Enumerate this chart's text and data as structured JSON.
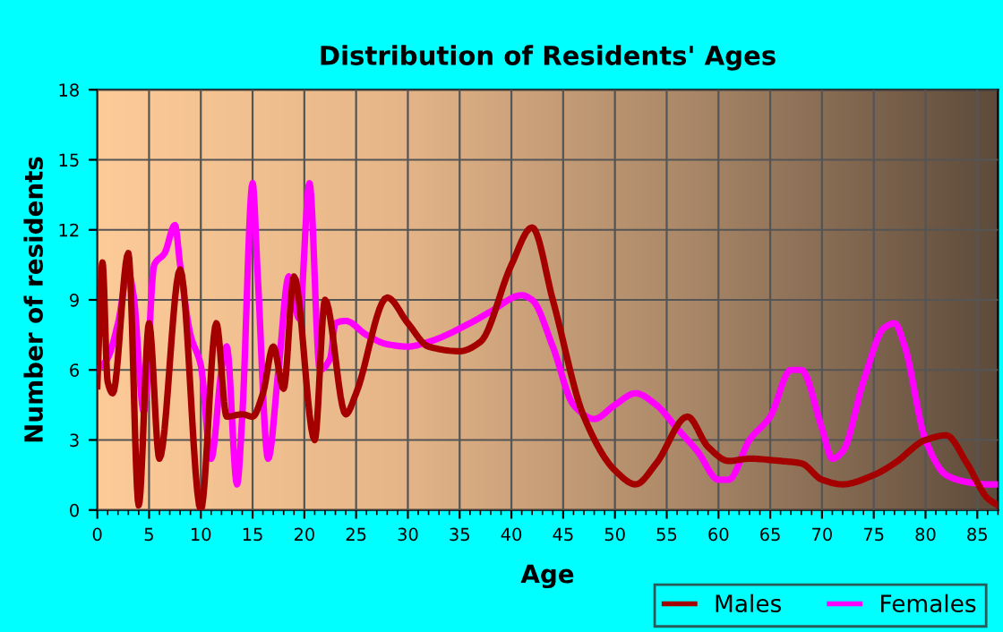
{
  "chart_data": {
    "type": "line",
    "title": "Distribution of Residents' Ages",
    "xlabel": "Age",
    "ylabel": "Number of residents",
    "xlim": [
      0,
      87
    ],
    "xticks": [
      0,
      5,
      10,
      15,
      20,
      25,
      30,
      35,
      40,
      45,
      50,
      55,
      60,
      65,
      70,
      75,
      80,
      85
    ],
    "ylim": [
      0,
      18
    ],
    "yticks": [
      0,
      3,
      6,
      9,
      12,
      15,
      18
    ],
    "grid": true,
    "legend": "bottom right",
    "marker": "none",
    "line_style": "solid",
    "series": [
      {
        "name": "Males",
        "color": "#a50000",
        "x": [
          0,
          0.5,
          1,
          1.5,
          3,
          4,
          5,
          6,
          8,
          10,
          11.5,
          12.5,
          14,
          15,
          16,
          17,
          18,
          19,
          21,
          22,
          24,
          25,
          28,
          30,
          32,
          35,
          37,
          40,
          42,
          44,
          47,
          50,
          52,
          54,
          57,
          59,
          61,
          63,
          66,
          68,
          70,
          72,
          75,
          77,
          80,
          82,
          84,
          86,
          87
        ],
        "values": [
          5.3,
          10.6,
          5.5,
          5,
          11,
          0.2,
          8,
          2.2,
          10.3,
          0,
          8,
          4,
          4.1,
          4,
          5,
          7,
          5.2,
          10,
          3,
          9,
          4.1,
          5,
          9.1,
          8,
          7,
          6.8,
          7.2,
          10.5,
          12.1,
          9,
          4,
          1.7,
          1.1,
          2,
          4,
          2.7,
          2.1,
          2.2,
          2.1,
          2,
          1.3,
          1.1,
          1.5,
          2,
          3,
          3.2,
          2,
          0.5,
          0.2
        ]
      },
      {
        "name": "Females",
        "color": "#ff00ff",
        "x": [
          0,
          1,
          2,
          3,
          3.5,
          4.5,
          5.5,
          6.5,
          7.5,
          8,
          9,
          10,
          11,
          12,
          12.5,
          13.5,
          14,
          15,
          15.5,
          16.5,
          17.5,
          18.5,
          19.5,
          20.5,
          21.5,
          22.5,
          23,
          24,
          26,
          28,
          30,
          32,
          36,
          38,
          41,
          42,
          44,
          46,
          48,
          50,
          52,
          54,
          56,
          58,
          60,
          61,
          63,
          65,
          67,
          68,
          70,
          71,
          72,
          74,
          76,
          77,
          78,
          80,
          82,
          84,
          86,
          87
        ],
        "values": [
          6,
          6.5,
          8,
          10.2,
          9.2,
          4.2,
          10.5,
          11,
          12.2,
          10.5,
          7.5,
          6.2,
          2.2,
          6,
          7,
          1.1,
          4,
          14,
          10,
          2.2,
          6,
          10,
          8.2,
          14,
          6,
          6.5,
          8,
          8.1,
          7.5,
          7.1,
          7,
          7.2,
          8,
          8.5,
          9.2,
          9,
          7,
          4.5,
          3.9,
          4.5,
          5,
          4.5,
          3.5,
          2.5,
          1.3,
          1.3,
          3,
          4,
          6,
          6,
          3.5,
          2.2,
          2.5,
          5.5,
          7.8,
          8,
          7,
          3,
          1.5,
          1.2,
          1.1,
          1.1
        ]
      }
    ]
  }
}
